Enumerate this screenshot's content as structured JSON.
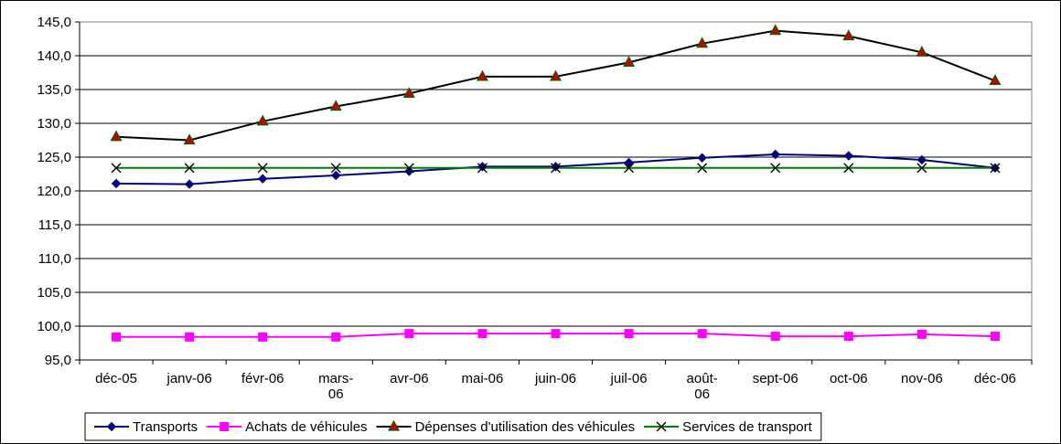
{
  "chart_data": {
    "type": "line",
    "categories": [
      "déc-05",
      "janv-06",
      "févr-06",
      "mars-06",
      "avr-06",
      "mai-06",
      "juin-06",
      "juil-06",
      "août-06",
      "sept-06",
      "oct-06",
      "nov-06",
      "déc-06"
    ],
    "ylim": [
      95,
      145
    ],
    "yticks": [
      "95,0",
      "100,0",
      "105,0",
      "110,0",
      "115,0",
      "120,0",
      "125,0",
      "130,0",
      "135,0",
      "140,0",
      "145,0"
    ],
    "grid": true,
    "legend_position": "bottom",
    "series": [
      {
        "name": "Transports",
        "color": "#000080",
        "marker": "diamond",
        "values": [
          121.1,
          121.0,
          121.8,
          122.3,
          122.9,
          123.6,
          123.6,
          124.2,
          124.9,
          125.4,
          125.2,
          124.6,
          123.4
        ]
      },
      {
        "name": "Achats de véhicules",
        "color": "#ff00ff",
        "marker": "square",
        "values": [
          98.4,
          98.4,
          98.4,
          98.4,
          98.9,
          98.9,
          98.9,
          98.9,
          98.9,
          98.5,
          98.5,
          98.8,
          98.5
        ]
      },
      {
        "name": "Dépenses d'utilisation des véhicules",
        "color": "#000000",
        "marker": "triangle",
        "marker_fill": "#cc0000",
        "marker_stroke": "#006600",
        "values": [
          128.0,
          127.5,
          130.3,
          132.5,
          134.4,
          136.9,
          136.9,
          139.0,
          141.8,
          143.7,
          142.9,
          140.5,
          136.3
        ]
      },
      {
        "name": "Services de transport",
        "color": "#008000",
        "marker": "x",
        "marker_color": "#000000",
        "values": [
          123.4,
          123.4,
          123.4,
          123.4,
          123.4,
          123.4,
          123.4,
          123.4,
          123.4,
          123.4,
          123.4,
          123.4,
          123.4
        ]
      }
    ]
  }
}
